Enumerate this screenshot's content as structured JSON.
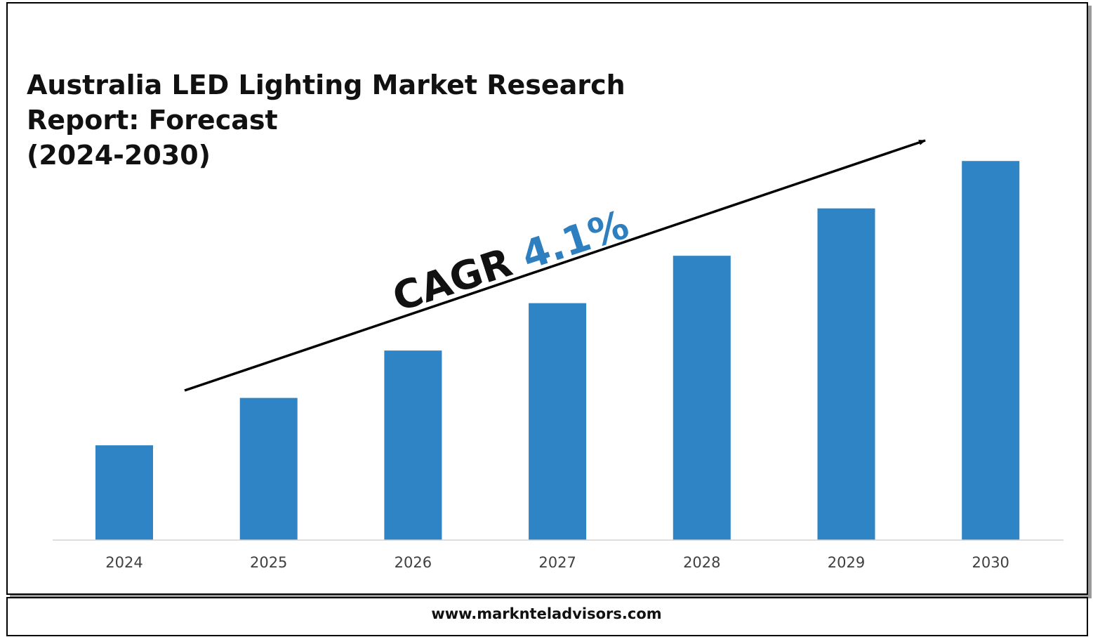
{
  "title_lines": [
    "Australia LED Lighting Market Research",
    "Report: Forecast",
    "(2024-2030)"
  ],
  "cagr": {
    "label": "CAGR",
    "value": "4.1%"
  },
  "footer": {
    "url": "www.marknteladvisors.com"
  },
  "colors": {
    "bar": "#2e84c4",
    "accent": "#2e7fc0",
    "axis": "#d4d4d4",
    "text": "#111111"
  },
  "chart_data": {
    "type": "bar",
    "categories": [
      "2024",
      "2025",
      "2026",
      "2027",
      "2028",
      "2029",
      "2030"
    ],
    "values": [
      1.0,
      1.5,
      2.0,
      2.5,
      3.0,
      3.5,
      4.0
    ],
    "title": "Australia LED Lighting Market Research Report: Forecast (2024-2030)",
    "xlabel": "",
    "ylabel": "",
    "ylim": [
      0,
      4.15
    ],
    "grid": false,
    "legend": "none",
    "annotation": "CAGR 4.1%"
  }
}
